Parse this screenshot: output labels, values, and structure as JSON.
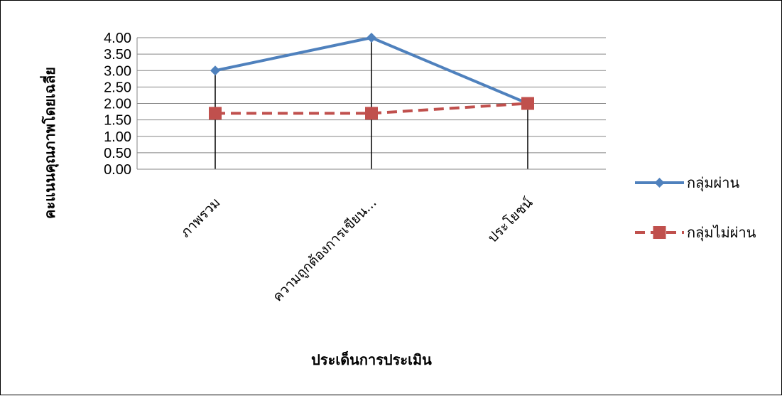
{
  "chart_data": {
    "type": "line",
    "title": "",
    "xlabel": "ประเด็นการประเมิน",
    "ylabel": "คะแนนคุณภาพโดยเฉลี่ย",
    "categories": [
      "ภาพรวม",
      "ความถูกต้องการเขียน...",
      "ประโยชน์"
    ],
    "series": [
      {
        "name": "กลุ่มผ่าน",
        "values": [
          3.0,
          4.0,
          2.0
        ],
        "color": "#4f81bd",
        "marker": "diamond",
        "dash": "solid"
      },
      {
        "name": "กลุ่มไม่ผ่าน",
        "values": [
          1.7,
          1.7,
          2.0
        ],
        "color": "#c0504d",
        "marker": "square",
        "dash": "dashed"
      }
    ],
    "ylim": [
      0,
      4
    ],
    "yticks": [
      "0.00",
      "0.50",
      "1.00",
      "1.50",
      "2.00",
      "2.50",
      "3.00",
      "3.50",
      "4.00"
    ],
    "grid": true,
    "drop_lines": true,
    "legend_position": "right"
  }
}
